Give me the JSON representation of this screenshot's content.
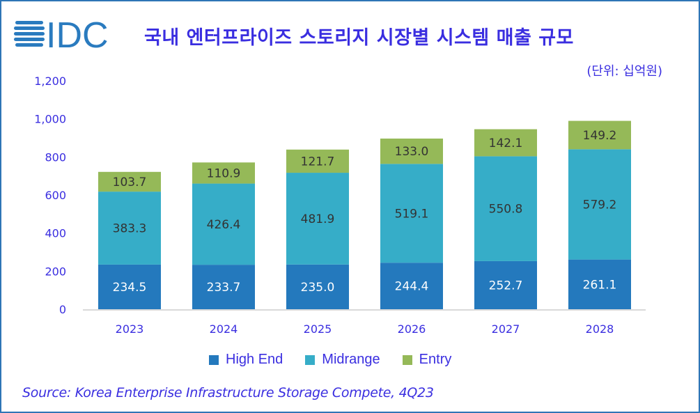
{
  "logo_text": "IDC",
  "colors": {
    "high_end": "#2479bd",
    "midrange": "#36adc8",
    "entry": "#95b958",
    "text": "#3a2ee0",
    "logo": "#2a7bbf"
  },
  "chart_data": {
    "type": "bar",
    "stacked": true,
    "title": "국내 엔터프라이즈 스토리지 시장별 시스템 매출 규모",
    "unit_label": "(단위: 십억원)",
    "categories": [
      "2023",
      "2024",
      "2025",
      "2026",
      "2027",
      "2028"
    ],
    "series": [
      {
        "name": "High End",
        "values": [
          234.5,
          233.7,
          235.0,
          244.4,
          252.7,
          261.1
        ]
      },
      {
        "name": "Midrange",
        "values": [
          383.3,
          426.4,
          481.9,
          519.1,
          550.8,
          579.2
        ]
      },
      {
        "name": "Entry",
        "values": [
          103.7,
          110.9,
          121.7,
          133.0,
          142.1,
          149.2
        ]
      }
    ],
    "yticks": [
      "0",
      "200",
      "400",
      "600",
      "800",
      "1,000",
      "1,200"
    ],
    "ylim": [
      0,
      1200
    ],
    "grid": false,
    "legend": "bottom"
  },
  "source": "Source: Korea Enterprise  Infrastructure Storage Compete, 4Q23"
}
